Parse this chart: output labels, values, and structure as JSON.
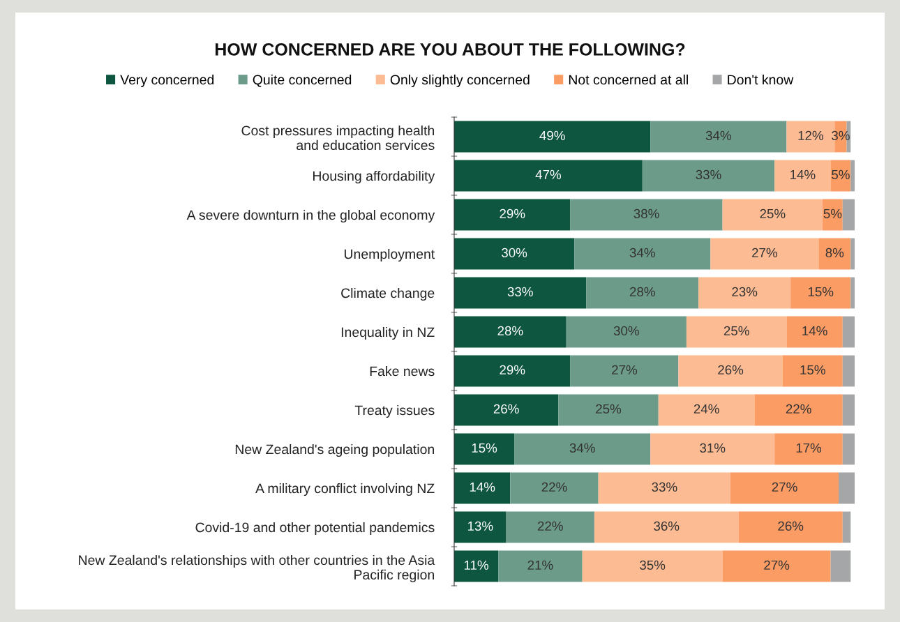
{
  "chart_data": {
    "type": "bar",
    "orientation": "horizontal",
    "stacked": true,
    "title": "HOW CONCERNED ARE YOU ABOUT THE FOLLOWING?",
    "legend": "top",
    "tick_labels": "y",
    "xlim": [
      0,
      100
    ],
    "grid": false,
    "categories": [
      "Cost pressures impacting health\nand education services",
      "Housing affordability",
      "A severe downturn in the global economy",
      "Unemployment",
      "Climate change",
      "Inequality in NZ",
      "Fake news",
      "Treaty issues",
      "New Zealand's ageing population",
      "A military conflict involving NZ",
      "Covid-19 and other potential pandemics",
      "New Zealand's relationships with other countries in the Asia\nPacific region"
    ],
    "series": [
      {
        "name": "Very concerned",
        "color": "#0f5640",
        "values": [
          49,
          47,
          29,
          30,
          33,
          28,
          29,
          26,
          15,
          14,
          13,
          11
        ],
        "value_labels": [
          "49%",
          "47%",
          "29%",
          "30%",
          "33%",
          "28%",
          "29%",
          "26%",
          "15%",
          "14%",
          "13%",
          "11%"
        ]
      },
      {
        "name": "Quite concerned",
        "color": "#6c9b8a",
        "values": [
          34,
          33,
          38,
          34,
          28,
          30,
          27,
          25,
          34,
          22,
          22,
          21
        ],
        "value_labels": [
          "34%",
          "33%",
          "38%",
          "34%",
          "28%",
          "30%",
          "27%",
          "25%",
          "34%",
          "22%",
          "22%",
          "21%"
        ]
      },
      {
        "name": "Only slightly concerned",
        "color": "#fdbb93",
        "values": [
          12,
          14,
          25,
          27,
          23,
          25,
          26,
          24,
          31,
          33,
          36,
          35
        ],
        "value_labels": [
          "12%",
          "14%",
          "25%",
          "27%",
          "23%",
          "25%",
          "26%",
          "24%",
          "31%",
          "33%",
          "36%",
          "35%"
        ]
      },
      {
        "name": "Not concerned at all",
        "color": "#fc9c65",
        "values": [
          3,
          5,
          5,
          8,
          15,
          14,
          15,
          22,
          17,
          27,
          26,
          27
        ],
        "value_labels": [
          "3%",
          "5%",
          "5%",
          "8%",
          "15%",
          "14%",
          "15%",
          "22%",
          "17%",
          "27%",
          "26%",
          "27%"
        ]
      },
      {
        "name": "Don't know",
        "color": "#a4a6a8",
        "values": [
          1,
          1,
          3,
          1,
          1,
          3,
          3,
          3,
          3,
          4,
          2,
          5
        ],
        "value_labels": [
          null,
          null,
          null,
          null,
          null,
          null,
          null,
          null,
          null,
          null,
          null,
          null
        ]
      }
    ]
  }
}
